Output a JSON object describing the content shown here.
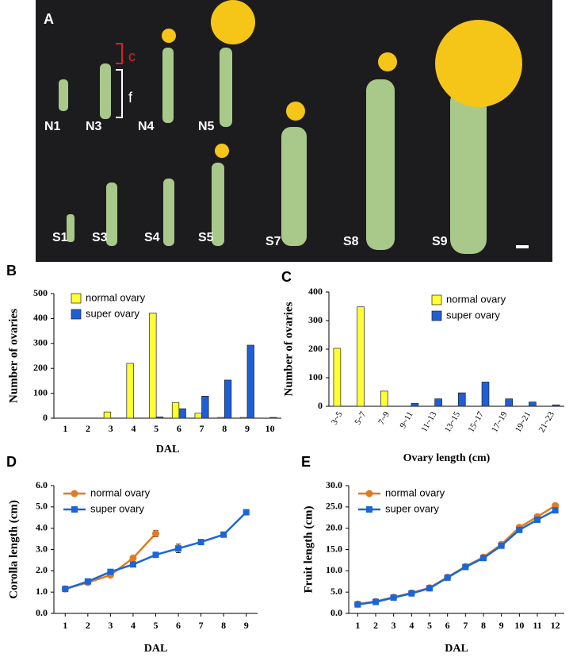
{
  "panel_a": {
    "panel": "A",
    "bracket_c": "c",
    "bracket_f": "f",
    "labels": [
      "N1",
      "N3",
      "N4",
      "N5",
      "S1",
      "S3",
      "S4",
      "S5",
      "S7",
      "S8",
      "S9"
    ]
  },
  "chart_data": [
    {
      "type": "bar",
      "panel": "B",
      "x_label": "DAL",
      "y_label": "Number of ovaries",
      "categories": [
        "1",
        "2",
        "3",
        "4",
        "5",
        "6",
        "7",
        "8",
        "9",
        "10"
      ],
      "series": [
        {
          "name": "normal ovary",
          "color": "#ffff33",
          "values": [
            0,
            0,
            25,
            220,
            422,
            63,
            20,
            3,
            3,
            0
          ]
        },
        {
          "name": "super ovary",
          "color": "#1f5fd6",
          "values": [
            0,
            0,
            0,
            0,
            5,
            38,
            88,
            153,
            293,
            3
          ]
        }
      ],
      "ylim": [
        0,
        500
      ],
      "yticks": [
        0,
        100,
        200,
        300,
        400,
        500
      ]
    },
    {
      "type": "bar",
      "panel": "C",
      "x_label": "Ovary length (cm)",
      "y_label": "Number of ovaries",
      "categories": [
        "3~5",
        "5~7",
        "7~9",
        "9~11",
        "11~13",
        "13~15",
        "15~17",
        "17~19",
        "19~21",
        "21~23"
      ],
      "series": [
        {
          "name": "normal ovary",
          "color": "#ffff33",
          "values": [
            203,
            348,
            53,
            0,
            0,
            0,
            0,
            0,
            0,
            0
          ]
        },
        {
          "name": "super ovary",
          "color": "#1f5fd6",
          "values": [
            0,
            0,
            0,
            10,
            26,
            47,
            85,
            26,
            15,
            5
          ]
        }
      ],
      "ylim": [
        0,
        400
      ],
      "yticks": [
        0,
        100,
        200,
        300,
        400
      ]
    },
    {
      "type": "line",
      "panel": "D",
      "x_label": "DAL",
      "y_label": "Corolla length (cm)",
      "x": [
        1,
        2,
        3,
        4,
        5,
        6,
        7,
        8,
        9
      ],
      "series": [
        {
          "name": "normal ovary",
          "color": "#e07b20",
          "marker": "circle",
          "values": [
            1.15,
            1.45,
            1.8,
            2.6,
            3.75,
            null,
            null,
            null,
            null
          ],
          "errors": [
            0.05,
            0.05,
            0.05,
            0.05,
            0.15,
            null,
            null,
            null,
            null
          ]
        },
        {
          "name": "super ovary",
          "color": "#1a66d6",
          "marker": "square",
          "values": [
            1.15,
            1.5,
            1.95,
            2.3,
            2.75,
            3.05,
            3.35,
            3.7,
            4.75
          ],
          "errors": [
            0.05,
            0.05,
            0.05,
            0.05,
            0.05,
            0.2,
            0.05,
            0.05,
            0.05
          ]
        }
      ],
      "xlim": [
        0.5,
        9.5
      ],
      "xticks": [
        1,
        2,
        3,
        4,
        5,
        6,
        7,
        8,
        9
      ],
      "ylim": [
        0,
        6
      ],
      "yticks": [
        {
          "value": 0,
          "label": "0.0"
        },
        {
          "value": 1,
          "label": "1.0"
        },
        {
          "value": 2,
          "label": "2.0"
        },
        {
          "value": 3,
          "label": "3.0"
        },
        {
          "value": 4,
          "label": "4.0"
        },
        {
          "value": 5,
          "label": "5.0"
        },
        {
          "value": 6,
          "label": "6.0"
        }
      ]
    },
    {
      "type": "line",
      "panel": "E",
      "x_label": "DAL",
      "y_label": "Fruit length (cm)",
      "x": [
        1,
        2,
        3,
        4,
        5,
        6,
        7,
        8,
        9,
        10,
        11,
        12
      ],
      "series": [
        {
          "name": "normal ovary",
          "color": "#e07b20",
          "marker": "circle",
          "values": [
            2.2,
            2.8,
            3.8,
            4.8,
            6.0,
            8.5,
            11.0,
            13.2,
            16.2,
            20.2,
            22.7,
            25.3
          ]
        },
        {
          "name": "super ovary",
          "color": "#1a66d6",
          "marker": "square",
          "values": [
            2.1,
            2.7,
            3.7,
            4.7,
            5.9,
            8.4,
            10.9,
            13.0,
            15.9,
            19.6,
            22.0,
            24.2
          ]
        }
      ],
      "xlim": [
        0.5,
        12.5
      ],
      "xticks": [
        1,
        2,
        3,
        4,
        5,
        6,
        7,
        8,
        9,
        10,
        11,
        12
      ],
      "ylim": [
        0,
        30
      ],
      "yticks": [
        {
          "value": 0,
          "label": "0.0"
        },
        {
          "value": 5,
          "label": "5.0"
        },
        {
          "value": 10,
          "label": "10.0"
        },
        {
          "value": 15,
          "label": "15.0"
        },
        {
          "value": 20,
          "label": "20.0"
        },
        {
          "value": 25,
          "label": "25.0"
        },
        {
          "value": 30,
          "label": "30.0"
        }
      ]
    }
  ]
}
